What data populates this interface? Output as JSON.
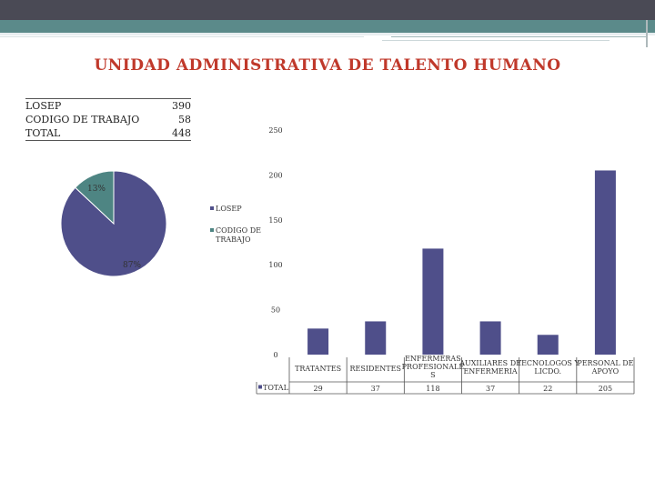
{
  "title": "UNIDAD ADMINISTRATIVA DE TALENTO HUMANO",
  "summary": [
    {
      "label": "LOSEP",
      "value": "390"
    },
    {
      "label": "CODIGO DE TRABAJO",
      "value": "58"
    },
    {
      "label": "TOTAL",
      "value": "448"
    }
  ],
  "colors": {
    "title": "#c0392b",
    "pie_losep": "#4f4f8a",
    "pie_codigo": "#4e8583",
    "bar": "#4f4f8a"
  },
  "chart_data": [
    {
      "type": "pie",
      "labels": [
        "LOSEP",
        "CODIGO DE TRABAJO"
      ],
      "values": [
        87,
        13
      ],
      "data_labels": [
        "87%",
        "13%"
      ],
      "legend": [
        "LOSEP",
        "CODIGO DE TRABAJO"
      ],
      "legend_display": [
        "LOSEP",
        "CODIGO DE",
        "TRABAJO"
      ],
      "legend_placement": "right"
    },
    {
      "type": "bar",
      "categories": [
        "TRATANTES",
        "RESIDENTES",
        "ENFERMERAS PROFESIONALES",
        "AUXILIARES DE ENFERMERIA",
        "TECNOLOGOS Y LICDO.",
        "PERSONAL DE APOYO"
      ],
      "category_lines": [
        [
          "TRATANTES"
        ],
        [
          "RESIDENTES"
        ],
        [
          "ENFERMERAS",
          "PROFESIONALE",
          "S"
        ],
        [
          "AUXILIARES DE",
          "ENFERMERIA"
        ],
        [
          "TECNOLOGOS Y",
          "LICDO."
        ],
        [
          "PERSONAL DE",
          "APOYO"
        ]
      ],
      "series": [
        {
          "name": "TOTAL",
          "values": [
            29,
            37,
            118,
            37,
            22,
            205
          ]
        }
      ],
      "ylim": [
        0,
        250
      ],
      "yticks": [
        "0",
        "50",
        "100",
        "150",
        "200",
        "250"
      ],
      "data_table": {
        "row_label": "TOTAL",
        "cells": [
          "29",
          "37",
          "118",
          "37",
          "22",
          "205"
        ]
      }
    }
  ]
}
